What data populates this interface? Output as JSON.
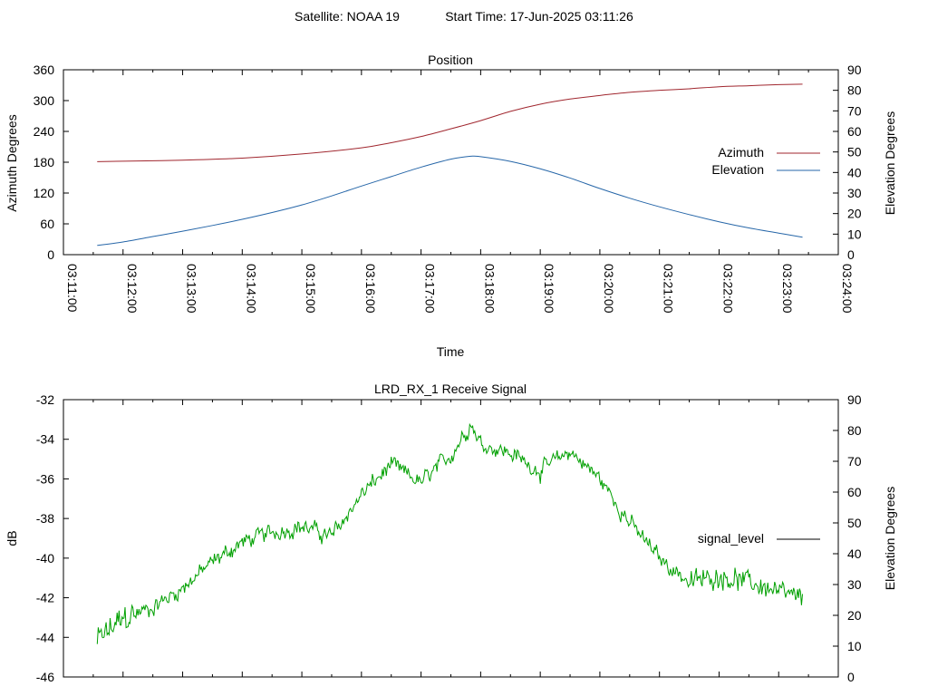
{
  "header": {
    "satellite": "Satellite: NOAA 19",
    "start_time": "Start Time: 17-Jun-2025 03:11:26"
  },
  "colors": {
    "azimuth": "#a0262e",
    "elevation": "#2666a8",
    "signal": "#00a000",
    "axis": "#000000"
  },
  "chart_data": [
    {
      "type": "line",
      "title": "Position",
      "xlabel": "Time",
      "ylabel": "Azimuth Degrees",
      "y2label": "Elevation Degrees",
      "xlim": [
        "03:11:00",
        "03:24:00"
      ],
      "ylim": [
        0,
        360
      ],
      "y2lim": [
        0,
        90
      ],
      "xticks": [
        "03:11:00",
        "03:12:00",
        "03:13:00",
        "03:14:00",
        "03:15:00",
        "03:16:00",
        "03:17:00",
        "03:18:00",
        "03:19:00",
        "03:20:00",
        "03:21:00",
        "03:22:00",
        "03:23:00",
        "03:24:00"
      ],
      "yticks": [
        0,
        60,
        120,
        180,
        240,
        300,
        360
      ],
      "y2ticks": [
        0,
        10,
        20,
        30,
        40,
        50,
        60,
        70,
        80,
        90
      ],
      "legend_position": "right",
      "series": [
        {
          "name": "Azimuth",
          "axis": "y",
          "x": [
            "03:11:34",
            "03:12:00",
            "03:13:00",
            "03:14:00",
            "03:15:00",
            "03:16:00",
            "03:16:30",
            "03:17:00",
            "03:17:30",
            "03:18:00",
            "03:18:30",
            "03:19:00",
            "03:19:30",
            "03:20:00",
            "03:20:30",
            "03:21:00",
            "03:21:30",
            "03:22:00",
            "03:22:30",
            "03:23:00",
            "03:23:24"
          ],
          "values": [
            181,
            182,
            184,
            188,
            196,
            208,
            218,
            230,
            245,
            261,
            279,
            293,
            303,
            310,
            316,
            320,
            323,
            327,
            329,
            331,
            332
          ]
        },
        {
          "name": "Elevation",
          "axis": "y2",
          "x": [
            "03:11:34",
            "03:12:00",
            "03:12:30",
            "03:13:00",
            "03:13:30",
            "03:14:00",
            "03:14:30",
            "03:15:00",
            "03:15:30",
            "03:16:00",
            "03:16:30",
            "03:17:00",
            "03:17:30",
            "03:17:50",
            "03:18:00",
            "03:18:30",
            "03:19:00",
            "03:19:30",
            "03:20:00",
            "03:20:30",
            "03:21:00",
            "03:21:30",
            "03:22:00",
            "03:22:30",
            "03:23:00",
            "03:23:24"
          ],
          "values": [
            4.5,
            6.2,
            8.8,
            11.4,
            14.2,
            17.2,
            20.5,
            24.2,
            28.6,
            33.4,
            38.0,
            42.6,
            46.5,
            47.9,
            47.7,
            45.4,
            41.8,
            37.3,
            32.2,
            27.5,
            23.3,
            19.5,
            16.0,
            13.0,
            10.5,
            8.5
          ]
        }
      ]
    },
    {
      "type": "line",
      "title": "LRD_RX_1 Receive Signal",
      "ylabel": "dB",
      "y2label": "Elevation Degrees",
      "xlim": [
        "03:11:00",
        "03:24:00"
      ],
      "ylim": [
        -46,
        -32
      ],
      "y2lim": [
        0,
        90
      ],
      "yticks": [
        -46,
        -44,
        -42,
        -40,
        -38,
        -36,
        -34,
        -32
      ],
      "y2ticks": [
        0,
        10,
        20,
        30,
        40,
        50,
        60,
        70,
        80,
        90
      ],
      "legend_position": "right",
      "series": [
        {
          "name": "signal_level",
          "axis": "y",
          "x": [
            "03:11:34",
            "03:12:00",
            "03:12:30",
            "03:13:00",
            "03:13:30",
            "03:14:00",
            "03:14:30",
            "03:15:00",
            "03:15:30",
            "03:16:00",
            "03:16:30",
            "03:17:00",
            "03:17:30",
            "03:17:50",
            "03:18:00",
            "03:18:30",
            "03:19:00",
            "03:19:30",
            "03:20:00",
            "03:20:30",
            "03:21:00",
            "03:21:30",
            "03:22:00",
            "03:22:30",
            "03:23:00",
            "03:23:24"
          ],
          "values": [
            -44.2,
            -43.0,
            -42.5,
            -41.5,
            -40.2,
            -39.2,
            -38.7,
            -38.4,
            -38.9,
            -36.8,
            -35.3,
            -36.2,
            -34.8,
            -33.2,
            -34.2,
            -34.7,
            -35.6,
            -34.6,
            -36.0,
            -38.2,
            -40.0,
            -41.2,
            -40.9,
            -41.2,
            -41.7,
            -42.1
          ]
        }
      ]
    }
  ]
}
